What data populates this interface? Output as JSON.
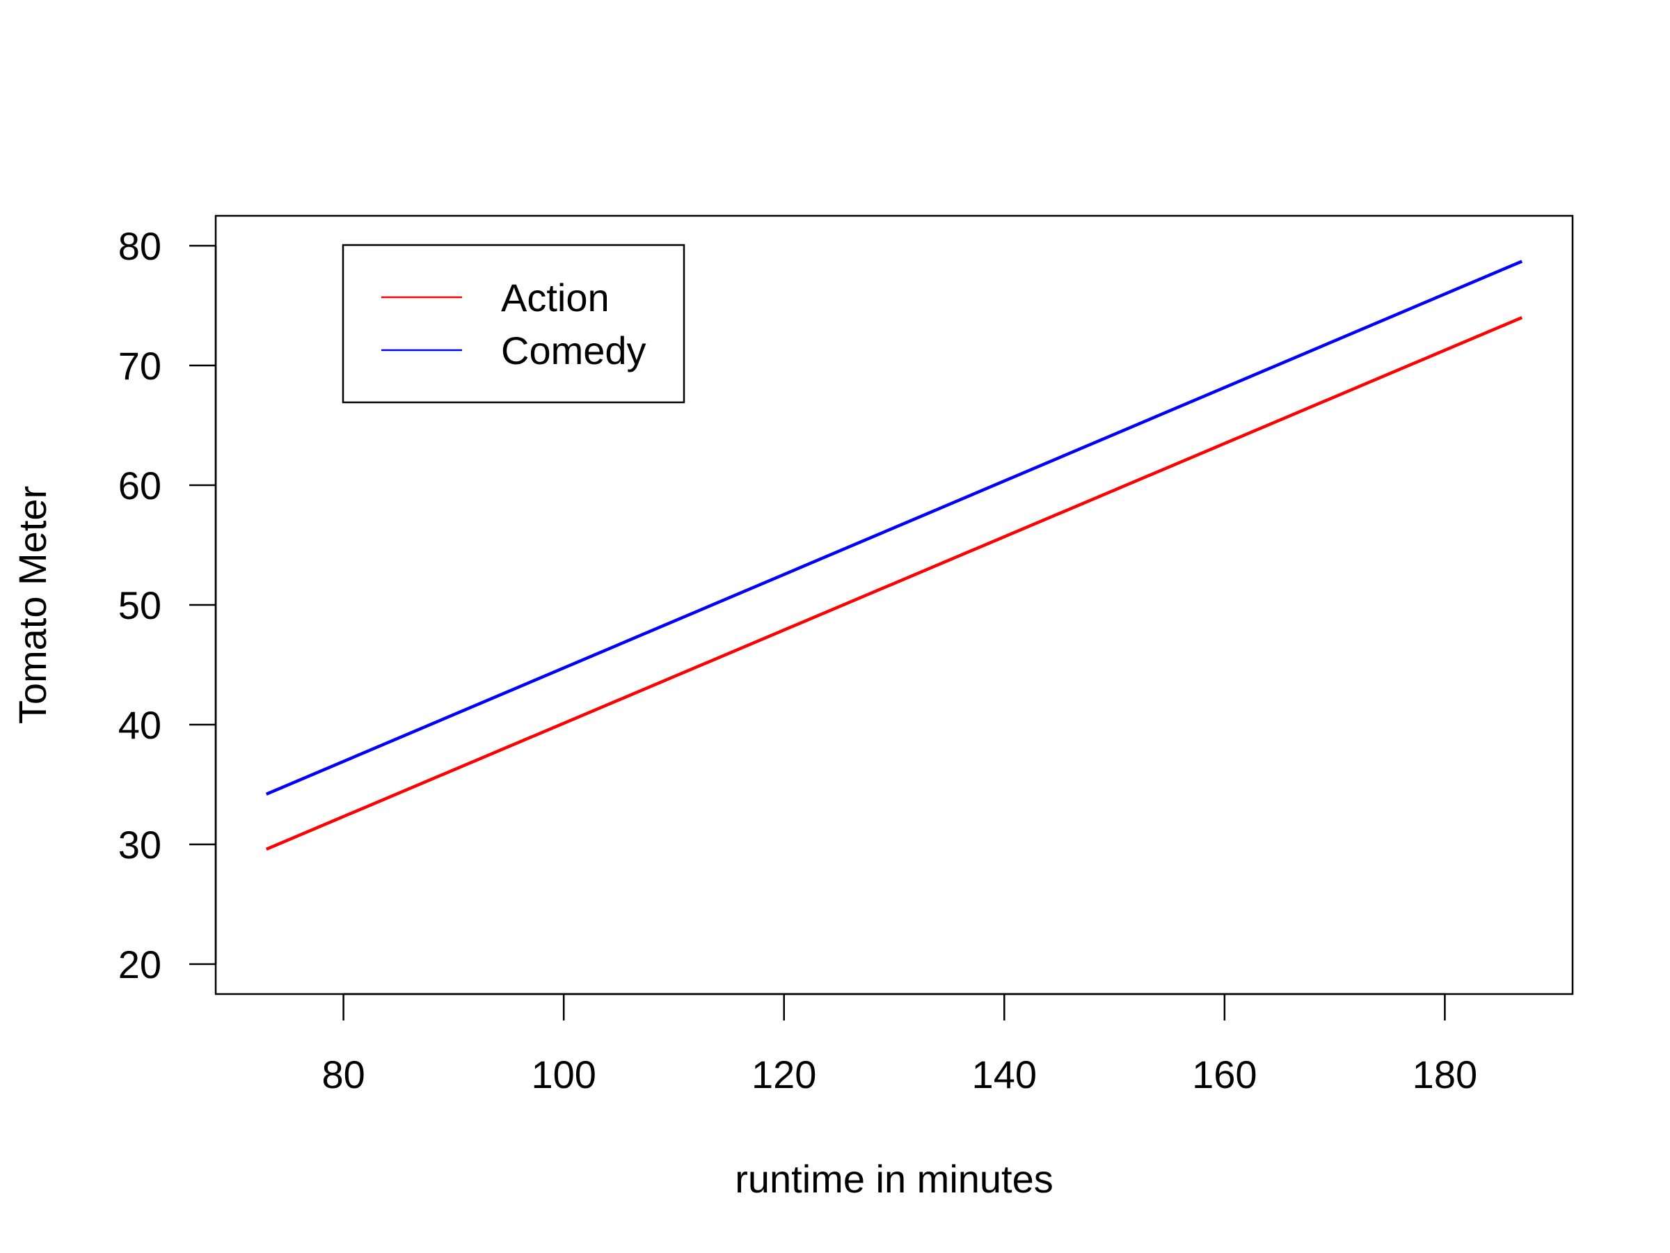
{
  "chart_data": {
    "type": "line",
    "title": "",
    "xlabel": "runtime in minutes",
    "ylabel": "Tomato Meter",
    "xlim": [
      68.4,
      191.6
    ],
    "ylim": [
      17.5,
      82.5
    ],
    "x_ticks": [
      80,
      100,
      120,
      140,
      160,
      180
    ],
    "y_ticks": [
      20,
      30,
      40,
      50,
      60,
      70,
      80
    ],
    "grid": false,
    "legend_position": "top-left",
    "series": [
      {
        "name": "Action",
        "color": "#ff0000",
        "x": [
          73,
          187
        ],
        "y": [
          29.6,
          74.0
        ]
      },
      {
        "name": "Comedy",
        "color": "#0000ff",
        "x": [
          73,
          187
        ],
        "y": [
          34.2,
          78.7
        ]
      }
    ]
  }
}
